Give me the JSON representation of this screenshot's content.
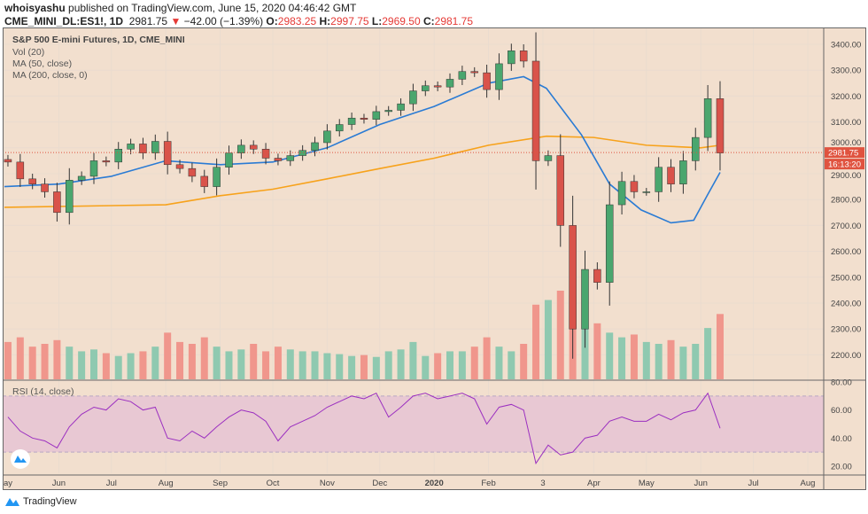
{
  "header": {
    "author": "whoisyashu",
    "published": "published on TradingView.com, June 15, 2020 04:46:42 GMT",
    "symbol": "CME_MINI_DL:ES1!, 1D",
    "last": "2981.75",
    "change": "−42.00 (−1.39%)",
    "o_label": "O:",
    "o": "2983.25",
    "h_label": "H:",
    "h": "2997.75",
    "l_label": "L:",
    "l": "2969.50",
    "c_label": "C:",
    "c": "2981.75"
  },
  "legend": {
    "title": "S&P 500 E-mini Futures, 1D, CME_MINI",
    "vol": "Vol (20)",
    "ma50": "MA (50, close)",
    "ma200": "MA (200, close, 0)",
    "rsi": "RSI (14, close)"
  },
  "price_label": "2981.75",
  "countdown_label": "16:13:20",
  "footer": {
    "brand": "TradingView"
  },
  "colors": {
    "pane_bg": "#f2dfce",
    "up": "#4aa66e",
    "down": "#d9534a",
    "vol_up": "#8fc9b0",
    "vol_down": "#f0968c",
    "ma50": "#2a7bd4",
    "ma200": "#f7a21b",
    "rsi": "#9b2fc0",
    "rsi_band": "#e8c8d3",
    "price_tag": "#e0533f"
  },
  "chart_data": {
    "type": "candlestick",
    "price_axis": {
      "ylim": [
        2130,
        3460
      ],
      "ticks": [
        "3400.00",
        "3300.00",
        "3200.00",
        "3100.00",
        "3000.00",
        "2900.00",
        "2800.00",
        "2700.00",
        "2600.00",
        "2500.00",
        "2400.00",
        "2300.00",
        "2200.00"
      ]
    },
    "rsi_axis": {
      "ylim": [
        18,
        81
      ],
      "ticks": [
        "80.00",
        "60.00",
        "40.00",
        "20.00"
      ],
      "band": [
        30,
        70
      ]
    },
    "time_ticks": [
      {
        "label": "May",
        "date": "2019-05-01"
      },
      {
        "label": "Jun",
        "date": "2019-06-01"
      },
      {
        "label": "Jul",
        "date": "2019-07-01"
      },
      {
        "label": "Aug",
        "date": "2019-08-01"
      },
      {
        "label": "Sep",
        "date": "2019-09-01"
      },
      {
        "label": "Oct",
        "date": "2019-10-01"
      },
      {
        "label": "Nov",
        "date": "2019-11-01"
      },
      {
        "label": "Dec",
        "date": "2019-12-01"
      },
      {
        "label": "2020",
        "date": "2020-01-01"
      },
      {
        "label": "Feb",
        "date": "2020-02-01"
      },
      {
        "label": "3",
        "date": "2020-03-03"
      },
      {
        "label": "Apr",
        "date": "2020-04-01"
      },
      {
        "label": "May",
        "date": "2020-05-01"
      },
      {
        "label": "Jun",
        "date": "2020-06-01"
      },
      {
        "label": "Jul",
        "date": "2020-07-01"
      },
      {
        "label": "Aug",
        "date": "2020-08-01"
      }
    ],
    "dates": [
      "2019-05-03",
      "2019-05-10",
      "2019-05-17",
      "2019-05-24",
      "2019-05-31",
      "2019-06-07",
      "2019-06-14",
      "2019-06-21",
      "2019-06-28",
      "2019-07-05",
      "2019-07-12",
      "2019-07-19",
      "2019-07-26",
      "2019-08-02",
      "2019-08-09",
      "2019-08-16",
      "2019-08-23",
      "2019-08-30",
      "2019-09-06",
      "2019-09-13",
      "2019-09-20",
      "2019-09-27",
      "2019-10-04",
      "2019-10-11",
      "2019-10-18",
      "2019-10-25",
      "2019-11-01",
      "2019-11-08",
      "2019-11-15",
      "2019-11-22",
      "2019-11-29",
      "2019-12-06",
      "2019-12-13",
      "2019-12-20",
      "2019-12-27",
      "2020-01-03",
      "2020-01-10",
      "2020-01-17",
      "2020-01-24",
      "2020-01-31",
      "2020-02-07",
      "2020-02-14",
      "2020-02-21",
      "2020-02-28",
      "2020-03-06",
      "2020-03-13",
      "2020-03-20",
      "2020-03-27",
      "2020-04-03",
      "2020-04-10",
      "2020-04-17",
      "2020-04-24",
      "2020-05-01",
      "2020-05-08",
      "2020-05-15",
      "2020-05-22",
      "2020-05-29",
      "2020-06-05",
      "2020-06-12"
    ],
    "close": [
      2945,
      2880,
      2860,
      2830,
      2750,
      2875,
      2890,
      2950,
      2945,
      2995,
      3015,
      2980,
      3025,
      2935,
      2920,
      2890,
      2850,
      2925,
      2980,
      3010,
      2995,
      2960,
      2950,
      2970,
      2990,
      3020,
      3065,
      3090,
      3115,
      3110,
      3140,
      3145,
      3170,
      3220,
      3240,
      3235,
      3265,
      3295,
      3290,
      3225,
      3325,
      3375,
      3335,
      2950,
      2970,
      2700,
      2300,
      2530,
      2480,
      2780,
      2870,
      2830,
      2830,
      2925,
      2860,
      2950,
      3040,
      3190,
      2980
    ],
    "volume_relative": [
      40,
      45,
      35,
      38,
      42,
      35,
      30,
      32,
      28,
      25,
      28,
      30,
      35,
      50,
      40,
      38,
      45,
      35,
      30,
      32,
      38,
      30,
      35,
      32,
      30,
      30,
      28,
      27,
      25,
      26,
      24,
      30,
      32,
      40,
      25,
      28,
      30,
      30,
      35,
      45,
      35,
      30,
      38,
      80,
      85,
      95,
      90,
      75,
      60,
      50,
      45,
      48,
      40,
      38,
      42,
      35,
      38,
      55,
      70
    ],
    "rsi": [
      55,
      45,
      40,
      38,
      33,
      48,
      57,
      62,
      60,
      68,
      66,
      60,
      62,
      40,
      38,
      45,
      40,
      48,
      55,
      60,
      58,
      52,
      38,
      48,
      52,
      56,
      62,
      66,
      70,
      68,
      72,
      55,
      62,
      70,
      72,
      68,
      70,
      72,
      68,
      50,
      62,
      64,
      60,
      22,
      35,
      28,
      30,
      40,
      42,
      52,
      55,
      52,
      52,
      57,
      53,
      58,
      60,
      72,
      47
    ],
    "ma50": [
      [
        "2019-05-01",
        2850
      ],
      [
        "2019-06-01",
        2860
      ],
      [
        "2019-07-01",
        2890
      ],
      [
        "2019-08-01",
        2950
      ],
      [
        "2019-09-01",
        2935
      ],
      [
        "2019-10-01",
        2945
      ],
      [
        "2019-11-01",
        3000
      ],
      [
        "2019-12-01",
        3090
      ],
      [
        "2020-01-01",
        3160
      ],
      [
        "2020-02-01",
        3250
      ],
      [
        "2020-02-21",
        3275
      ],
      [
        "2020-03-05",
        3230
      ],
      [
        "2020-03-25",
        3050
      ],
      [
        "2020-04-10",
        2860
      ],
      [
        "2020-04-28",
        2760
      ],
      [
        "2020-05-15",
        2710
      ],
      [
        "2020-05-28",
        2720
      ],
      [
        "2020-06-05",
        2820
      ],
      [
        "2020-06-12",
        2905
      ]
    ],
    "ma200": [
      [
        "2019-05-01",
        2770
      ],
      [
        "2019-08-01",
        2780
      ],
      [
        "2019-09-01",
        2815
      ],
      [
        "2019-10-01",
        2840
      ],
      [
        "2019-11-01",
        2880
      ],
      [
        "2019-12-01",
        2920
      ],
      [
        "2020-01-01",
        2960
      ],
      [
        "2020-02-01",
        3010
      ],
      [
        "2020-03-05",
        3045
      ],
      [
        "2020-04-01",
        3040
      ],
      [
        "2020-05-01",
        3010
      ],
      [
        "2020-06-01",
        3000
      ],
      [
        "2020-06-12",
        3010
      ]
    ],
    "last_price": 2981.75
  }
}
